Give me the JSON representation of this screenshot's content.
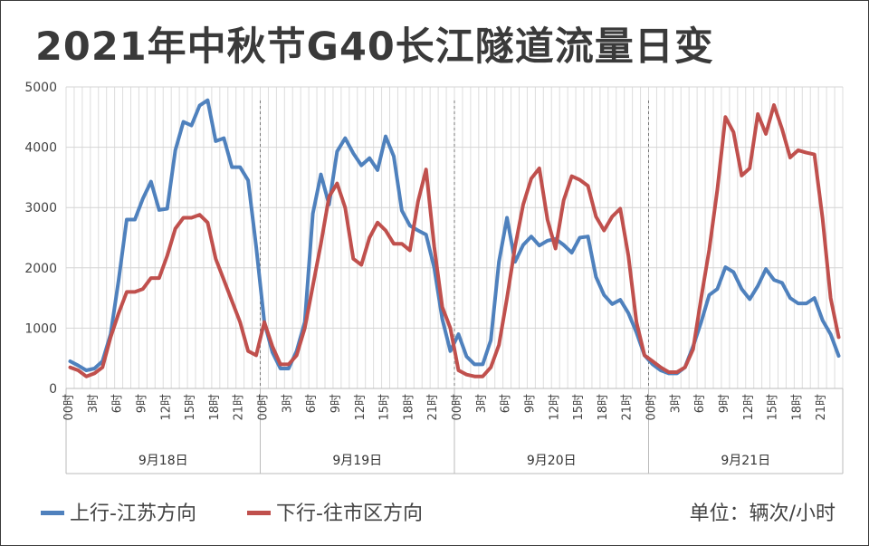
{
  "title": "2021年中秋节G40长江隧道流量日变",
  "unit_label": "单位：辆次/小时",
  "colors": {
    "series_1": "#4f81bd",
    "series_2": "#c0504d",
    "grid": "#dddddd",
    "text": "#444444"
  },
  "chart_data": {
    "type": "line",
    "title": "2021年中秋节G40长江隧道流量日变",
    "ylim": [
      0,
      5000
    ],
    "y_ticks": [
      0,
      1000,
      2000,
      3000,
      4000,
      5000
    ],
    "grid": true,
    "legend_position": "bottom-left",
    "days": [
      "9月18日",
      "9月19日",
      "9月20日",
      "9月21日"
    ],
    "hour_ticks": [
      "00时",
      "3时",
      "6时",
      "9时",
      "12时",
      "15时",
      "18时",
      "21时"
    ],
    "hours_per_day": 24,
    "series": [
      {
        "name": "上行-江苏方向",
        "color": "#4f81bd",
        "values": [
          450,
          380,
          300,
          330,
          450,
          900,
          1800,
          2800,
          2800,
          3150,
          3430,
          2960,
          2980,
          3950,
          4420,
          4360,
          4690,
          4780,
          4100,
          4150,
          3670,
          3670,
          3450,
          2350,
          1100,
          600,
          330,
          330,
          620,
          1100,
          2900,
          3550,
          3050,
          3930,
          4150,
          3900,
          3700,
          3820,
          3620,
          4180,
          3850,
          2950,
          2700,
          2620,
          2550,
          2000,
          1150,
          620,
          900,
          530,
          400,
          400,
          800,
          2100,
          2830,
          2100,
          2380,
          2520,
          2370,
          2450,
          2480,
          2380,
          2250,
          2500,
          2520,
          1850,
          1550,
          1400,
          1470,
          1250,
          930,
          550,
          400,
          300,
          250,
          250,
          350,
          700,
          1100,
          1550,
          1650,
          2010,
          1930,
          1650,
          1480,
          1700,
          1980,
          1800,
          1750,
          1500,
          1410,
          1410,
          1500,
          1130,
          900,
          540
        ]
      },
      {
        "name": "下行-往市区方向",
        "color": "#c0504d",
        "values": [
          350,
          300,
          200,
          250,
          350,
          850,
          1250,
          1600,
          1600,
          1650,
          1830,
          1830,
          2200,
          2650,
          2830,
          2830,
          2880,
          2750,
          2150,
          1800,
          1450,
          1100,
          620,
          550,
          1100,
          700,
          400,
          400,
          550,
          1000,
          1700,
          2400,
          3180,
          3400,
          3000,
          2150,
          2050,
          2500,
          2750,
          2620,
          2400,
          2400,
          2290,
          3100,
          3630,
          2350,
          1350,
          1000,
          300,
          230,
          200,
          200,
          350,
          720,
          1500,
          2350,
          3050,
          3480,
          3650,
          2800,
          2320,
          3120,
          3520,
          3460,
          3360,
          2850,
          2620,
          2850,
          2980,
          2200,
          1100,
          550,
          450,
          350,
          270,
          270,
          350,
          650,
          1500,
          2300,
          3300,
          4500,
          4250,
          3530,
          3650,
          4550,
          4220,
          4700,
          4300,
          3830,
          3950,
          3910,
          3880,
          2820,
          1500,
          850
        ]
      }
    ]
  }
}
